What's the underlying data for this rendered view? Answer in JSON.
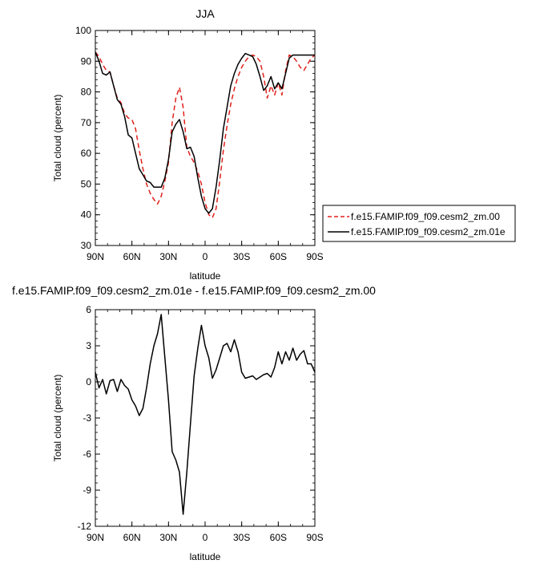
{
  "chart_data": [
    {
      "type": "line",
      "title": "JJA",
      "xlabel": "latitude",
      "ylabel": "Total cloud (percent)",
      "xlim": [
        90,
        -90
      ],
      "ylim": [
        30,
        100
      ],
      "x_ticks": [
        90,
        60,
        30,
        0,
        -30,
        -60,
        -90
      ],
      "x_tick_labels": [
        "90N",
        "60N",
        "30N",
        "0",
        "30S",
        "60S",
        "90S"
      ],
      "y_ticks": [
        30,
        40,
        50,
        60,
        70,
        80,
        90,
        100
      ],
      "y_tick_labels": [
        "30",
        "40",
        "50",
        "60",
        "70",
        "80",
        "90",
        "100"
      ],
      "grid": false,
      "legend_position": "outside-right",
      "series": [
        {
          "name": "f.e15.FAMIP.f09_f09.cesm2_zm.00",
          "color": "#e0201b",
          "dash": "dashed",
          "x": [
            90,
            87,
            84,
            81,
            78,
            75,
            72,
            69,
            66,
            63,
            60,
            57,
            54,
            51,
            48,
            45,
            42,
            39,
            36,
            33,
            30,
            27,
            24,
            21,
            18,
            15,
            12,
            9,
            6,
            3,
            0,
            -3,
            -6,
            -9,
            -12,
            -15,
            -18,
            -21,
            -24,
            -27,
            -30,
            -33,
            -36,
            -39,
            -42,
            -45,
            -48,
            -51,
            -54,
            -57,
            -60,
            -63,
            -66,
            -69,
            -72,
            -75,
            -78,
            -81,
            -84,
            -87,
            -90
          ],
          "values": [
            93,
            91.5,
            89,
            87,
            86.5,
            82,
            78,
            76.5,
            73,
            71.5,
            71,
            68,
            61,
            55,
            50,
            47,
            45,
            43.5,
            46,
            51,
            57,
            70,
            78,
            81.5,
            75,
            62,
            59,
            57,
            54,
            50,
            44,
            40,
            39,
            42,
            51,
            61,
            69,
            76,
            81,
            85,
            88,
            90,
            91.5,
            92,
            91.5,
            90,
            85,
            78,
            82,
            79,
            83,
            79,
            87,
            92,
            91.5,
            90,
            88,
            87,
            89,
            91,
            92
          ]
        },
        {
          "name": "f.e15.FAMIP.f09_f09.cesm2_zm.01e",
          "color": "#000000",
          "dash": "solid",
          "x": [
            90,
            87,
            84,
            81,
            78,
            75,
            72,
            69,
            66,
            63,
            60,
            57,
            54,
            51,
            48,
            45,
            42,
            39,
            36,
            33,
            30,
            27,
            24,
            21,
            18,
            15,
            12,
            9,
            6,
            3,
            0,
            -3,
            -6,
            -9,
            -12,
            -15,
            -18,
            -21,
            -24,
            -27,
            -30,
            -33,
            -36,
            -39,
            -42,
            -45,
            -48,
            -51,
            -54,
            -57,
            -60,
            -63,
            -66,
            -69,
            -72,
            -75,
            -78,
            -81,
            -84,
            -87,
            -90
          ],
          "values": [
            93,
            90,
            86,
            85.5,
            86.5,
            82,
            77.5,
            76,
            72,
            66,
            65,
            60,
            55,
            53,
            51,
            50.5,
            49,
            49,
            49,
            52,
            58,
            67,
            69.5,
            71,
            67,
            61.5,
            62,
            59,
            52,
            46,
            42,
            40.5,
            42,
            49,
            58,
            68,
            75,
            82,
            86,
            89,
            91,
            92.5,
            92,
            91.5,
            89,
            85,
            80.5,
            82,
            85,
            81,
            83,
            81,
            86,
            91,
            92,
            92,
            92,
            92,
            92,
            92,
            92
          ]
        }
      ]
    },
    {
      "type": "line",
      "title": "f.e15.FAMIP.f09_f09.cesm2_zm.01e - f.e15.FAMIP.f09_f09.cesm2_zm.00",
      "xlabel": "latitude",
      "ylabel": "Total cloud (percent)",
      "xlim": [
        90,
        -90
      ],
      "ylim": [
        -12,
        6
      ],
      "x_ticks": [
        90,
        60,
        30,
        0,
        -30,
        -60,
        -90
      ],
      "x_tick_labels": [
        "90N",
        "60N",
        "30N",
        "0",
        "30S",
        "60S",
        "90S"
      ],
      "y_ticks": [
        -12,
        -9,
        -6,
        -3,
        0,
        3,
        6
      ],
      "y_tick_labels": [
        "-12",
        "-9",
        "-6",
        "-3",
        "0",
        "3",
        "6"
      ],
      "grid": false,
      "series": [
        {
          "color": "#000000",
          "dash": "solid",
          "x": [
            90,
            87,
            84,
            81,
            78,
            75,
            72,
            69,
            66,
            63,
            60,
            57,
            54,
            51,
            48,
            45,
            42,
            39,
            36,
            33,
            30,
            27,
            24,
            21,
            18,
            15,
            12,
            9,
            6,
            3,
            0,
            -3,
            -6,
            -9,
            -12,
            -15,
            -18,
            -21,
            -24,
            -27,
            -30,
            -33,
            -36,
            -39,
            -42,
            -45,
            -48,
            -51,
            -54,
            -57,
            -60,
            -63,
            -66,
            -69,
            -72,
            -75,
            -78,
            -81,
            -84,
            -87,
            -90
          ],
          "values": [
            0.8,
            -0.5,
            0.2,
            -1,
            0.1,
            0.2,
            -0.8,
            0.2,
            -0.3,
            -0.6,
            -1.5,
            -2,
            -2.8,
            -2.2,
            -0.5,
            1.5,
            3,
            4,
            5.6,
            2,
            -1.5,
            -5.8,
            -6.5,
            -7.5,
            -11,
            -7.5,
            -3.5,
            0.5,
            2.8,
            4.7,
            3,
            2,
            0.3,
            1,
            2,
            3,
            3.2,
            2.5,
            3.5,
            2.5,
            0.8,
            0.3,
            0.4,
            0.5,
            0.2,
            0.4,
            0.6,
            0.7,
            0.4,
            1.2,
            2.5,
            1.5,
            2.5,
            1.8,
            2.8,
            1.8,
            2.3,
            2.6,
            1.5,
            1.5,
            0.8
          ]
        }
      ]
    }
  ]
}
